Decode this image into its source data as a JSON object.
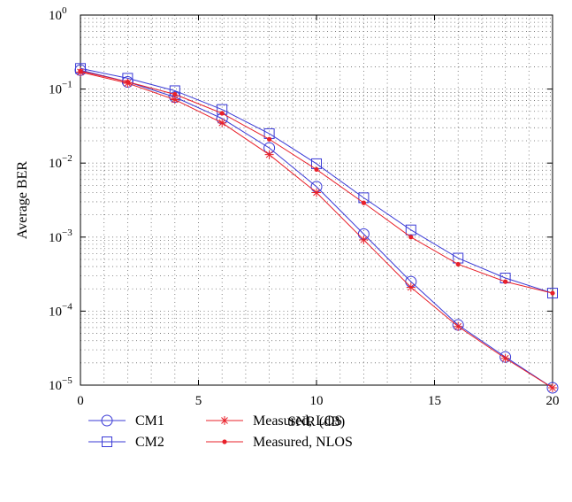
{
  "chart_data": {
    "type": "line",
    "xlabel": "SNR (dB)",
    "ylabel": "Average BER",
    "xlim": [
      0,
      20
    ],
    "ylim": [
      1e-05,
      1
    ],
    "yscale": "log",
    "grid": true,
    "legend_position": "bottom",
    "x": [
      0,
      2,
      4,
      6,
      8,
      10,
      12,
      14,
      16,
      18,
      20
    ],
    "x_ticks": [
      "0",
      "5",
      "10",
      "15",
      "20"
    ],
    "y_ticks": [
      {
        "base": "10",
        "exp": "0"
      },
      {
        "base": "10",
        "exp": "−1"
      },
      {
        "base": "10",
        "exp": "−2"
      },
      {
        "base": "10",
        "exp": "−3"
      },
      {
        "base": "10",
        "exp": "−4"
      },
      {
        "base": "10",
        "exp": "−5"
      }
    ],
    "series": [
      {
        "name": "CM1",
        "color": "#3a3ad6",
        "marker": "circle",
        "values": [
          0.18,
          0.125,
          0.078,
          0.04,
          0.016,
          0.0048,
          0.0011,
          0.00025,
          6.5e-05,
          2.4e-05,
          9.2e-06
        ]
      },
      {
        "name": "CM2",
        "color": "#3a3ad6",
        "marker": "square",
        "values": [
          0.19,
          0.14,
          0.095,
          0.053,
          0.025,
          0.0098,
          0.0034,
          0.00125,
          0.00052,
          0.00028,
          0.000175
        ]
      },
      {
        "name": "Measured, LOS",
        "color": "#e8202a",
        "marker": "star",
        "values": [
          0.17,
          0.12,
          0.072,
          0.035,
          0.013,
          0.004,
          0.00092,
          0.00021,
          6.2e-05,
          2.3e-05,
          9.2e-06
        ]
      },
      {
        "name": "Measured, NLOS",
        "color": "#e8202a",
        "marker": "dot",
        "values": [
          0.175,
          0.125,
          0.085,
          0.047,
          0.021,
          0.0082,
          0.0029,
          0.001,
          0.00043,
          0.00025,
          0.000175
        ]
      }
    ]
  }
}
